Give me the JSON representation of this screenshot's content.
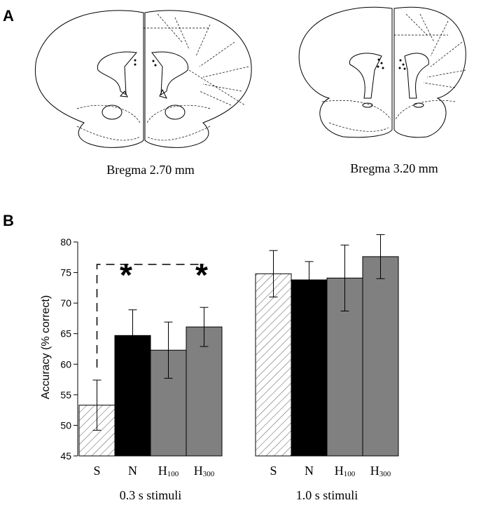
{
  "panel_a": {
    "label": "A",
    "captions": [
      "Bregma 2.70 mm",
      "Bregma 3.20 mm"
    ]
  },
  "panel_b": {
    "label": "B"
  },
  "chart_data": {
    "type": "grouped_bar",
    "y_label": "Accuracy (% correct)",
    "ylim": [
      45,
      80
    ],
    "yticks": [
      45,
      50,
      55,
      60,
      65,
      70,
      75,
      80
    ],
    "colors": [
      "#555555",
      "#000000",
      "#808080",
      "#808080"
    ],
    "patterns": [
      "hatch",
      "solid",
      "solid",
      "solid"
    ],
    "groups": [
      {
        "label": "0.3 s stimuli",
        "categories": [
          "S",
          "N",
          "H100",
          "H300"
        ],
        "values": [
          53.3,
          64.7,
          62.3,
          66.1
        ],
        "errors": [
          4.1,
          4.2,
          4.6,
          3.2
        ]
      },
      {
        "label": "1.0 s stimuli",
        "categories": [
          "S",
          "N",
          "H100",
          "H300"
        ],
        "values": [
          74.8,
          73.8,
          74.1,
          77.6
        ],
        "errors": [
          3.8,
          3.0,
          5.4,
          3.6
        ]
      }
    ],
    "annotations": [
      "*",
      "*"
    ]
  }
}
